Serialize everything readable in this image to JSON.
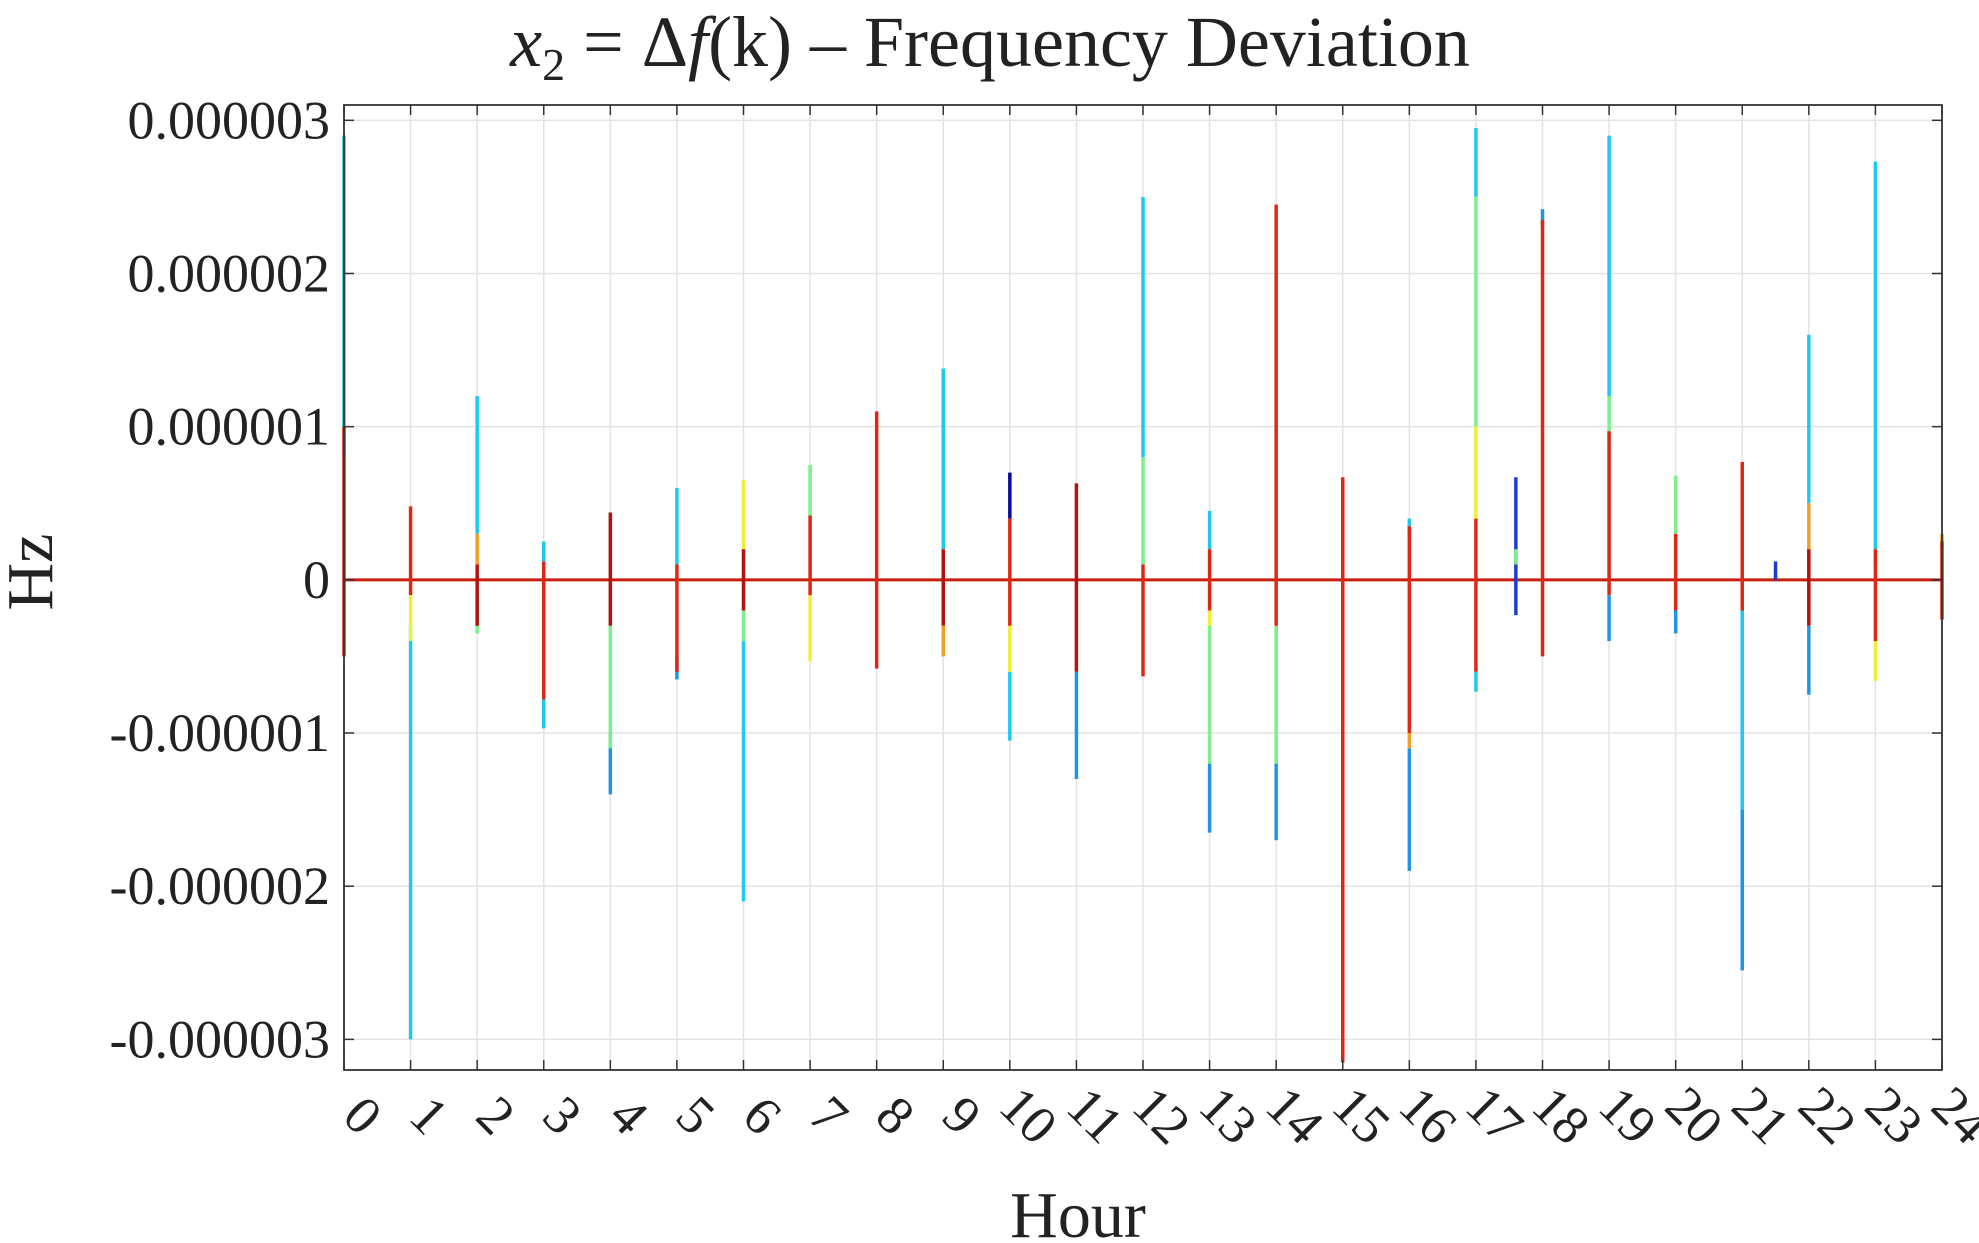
{
  "chart_data": {
    "type": "line",
    "title_var": "x",
    "title_sub": "2",
    "title_eq": " = Δ",
    "title_f": "f",
    "title_args": "(k)",
    "title_rest": " – Frequency Deviation",
    "xlabel": "Hour",
    "ylabel": "Hz",
    "xlim": [
      0,
      24
    ],
    "ylim": [
      -3.2e-06,
      3.1e-06
    ],
    "grid": true,
    "x_ticks": [
      "0",
      "1",
      "2",
      "3",
      "4",
      "5",
      "6",
      "7",
      "8",
      "9",
      "10",
      "11",
      "12",
      "13",
      "14",
      "15",
      "16",
      "17",
      "18",
      "19",
      "20",
      "21",
      "22",
      "23",
      "24"
    ],
    "y_ticks": [
      {
        "value": 3e-06,
        "label": "0.000003"
      },
      {
        "value": 2e-06,
        "label": "0.000002"
      },
      {
        "value": 1e-06,
        "label": "0.000001"
      },
      {
        "value": 0,
        "label": "0"
      },
      {
        "value": -1e-06,
        "label": "-0.000001"
      },
      {
        "value": -2e-06,
        "label": "-0.000002"
      },
      {
        "value": -3e-06,
        "label": "-0.000003"
      }
    ],
    "colors": {
      "cyan": "#1ec8f0",
      "lightblue": "#1e96e6",
      "green": "#7cf08c",
      "yellow": "#f0f032",
      "orange": "#f0a028",
      "red": "#dc2814",
      "darkred": "#b4140f",
      "blue": "#1e3cd2",
      "navy": "#0a0aa0"
    },
    "baseline_color": "#c81e0f",
    "spikes": [
      {
        "x": 0.0,
        "c": "cyan",
        "y0": 1e-06,
        "y1": 2.9e-06
      },
      {
        "x": 0.0,
        "c": "green",
        "y0": 8e-07,
        "y1": 1e-06
      },
      {
        "x": 0.0,
        "c": "red",
        "y0": -5e-07,
        "y1": 1e-06
      },
      {
        "x": 1.0,
        "c": "cyan",
        "y0": -3e-06,
        "y1": -3e-07
      },
      {
        "x": 1.0,
        "c": "yellow",
        "y0": -4e-07,
        "y1": -1e-07
      },
      {
        "x": 1.0,
        "c": "red",
        "y0": -1e-07,
        "y1": 4.8e-07
      },
      {
        "x": 2.0,
        "c": "cyan",
        "y0": 3e-07,
        "y1": 1.2e-06
      },
      {
        "x": 2.0,
        "c": "orange",
        "y0": 1e-07,
        "y1": 3e-07
      },
      {
        "x": 2.0,
        "c": "green",
        "y0": -3.5e-07,
        "y1": -1e-07
      },
      {
        "x": 2.0,
        "c": "darkred",
        "y0": -3e-07,
        "y1": 1e-07
      },
      {
        "x": 3.0,
        "c": "cyan",
        "y0": -9.7e-07,
        "y1": -7e-07
      },
      {
        "x": 3.0,
        "c": "cyan",
        "y0": 1e-07,
        "y1": 2.5e-07
      },
      {
        "x": 3.0,
        "c": "red",
        "y0": -7.8e-07,
        "y1": 1.2e-07
      },
      {
        "x": 4.0,
        "c": "lightblue",
        "y0": -1.4e-06,
        "y1": -1e-06
      },
      {
        "x": 4.0,
        "c": "green",
        "y0": -1.1e-06,
        "y1": -3e-07
      },
      {
        "x": 4.0,
        "c": "darkred",
        "y0": -3e-07,
        "y1": 4.4e-07
      },
      {
        "x": 5.0,
        "c": "cyan",
        "y0": 1e-07,
        "y1": 6e-07
      },
      {
        "x": 5.0,
        "c": "lightblue",
        "y0": -6.5e-07,
        "y1": -5e-07
      },
      {
        "x": 5.0,
        "c": "red",
        "y0": -6e-07,
        "y1": 1e-07
      },
      {
        "x": 6.0,
        "c": "cyan",
        "y0": -2.1e-06,
        "y1": -4e-07
      },
      {
        "x": 6.0,
        "c": "green",
        "y0": -4e-07,
        "y1": -2e-07
      },
      {
        "x": 6.0,
        "c": "yellow",
        "y0": 2e-07,
        "y1": 6.5e-07
      },
      {
        "x": 6.0,
        "c": "darkred",
        "y0": -2e-07,
        "y1": 2e-07
      },
      {
        "x": 7.0,
        "c": "green",
        "y0": 4e-07,
        "y1": 7.5e-07
      },
      {
        "x": 7.0,
        "c": "yellow",
        "y0": -5.3e-07,
        "y1": -1e-07
      },
      {
        "x": 7.0,
        "c": "red",
        "y0": -1e-07,
        "y1": 4.2e-07
      },
      {
        "x": 8.0,
        "c": "red",
        "y0": -5.8e-07,
        "y1": 1.1e-06
      },
      {
        "x": 9.0,
        "c": "cyan",
        "y0": 2e-07,
        "y1": 1.38e-06
      },
      {
        "x": 9.0,
        "c": "orange",
        "y0": -5e-07,
        "y1": -3e-07
      },
      {
        "x": 9.0,
        "c": "darkred",
        "y0": -3e-07,
        "y1": 2e-07
      },
      {
        "x": 10.0,
        "c": "navy",
        "y0": 4e-07,
        "y1": 7e-07
      },
      {
        "x": 10.0,
        "c": "cyan",
        "y0": -1.05e-06,
        "y1": -6e-07
      },
      {
        "x": 10.0,
        "c": "yellow",
        "y0": -6e-07,
        "y1": -3e-07
      },
      {
        "x": 10.0,
        "c": "red",
        "y0": -3e-07,
        "y1": 4e-07
      },
      {
        "x": 11.0,
        "c": "lightblue",
        "y0": -1.3e-06,
        "y1": -6e-07
      },
      {
        "x": 11.0,
        "c": "darkred",
        "y0": -6e-07,
        "y1": 6.3e-07
      },
      {
        "x": 12.0,
        "c": "cyan",
        "y0": 8e-07,
        "y1": 2.5e-06
      },
      {
        "x": 12.0,
        "c": "green",
        "y0": 1e-07,
        "y1": 8e-07
      },
      {
        "x": 12.0,
        "c": "red",
        "y0": -6.3e-07,
        "y1": 1e-07
      },
      {
        "x": 13.0,
        "c": "lightblue",
        "y0": -1.65e-06,
        "y1": -1.2e-06
      },
      {
        "x": 13.0,
        "c": "green",
        "y0": -1.2e-06,
        "y1": -3e-07
      },
      {
        "x": 13.0,
        "c": "yellow",
        "y0": -3e-07,
        "y1": -2e-07
      },
      {
        "x": 13.0,
        "c": "cyan",
        "y0": 2e-07,
        "y1": 4.5e-07
      },
      {
        "x": 13.0,
        "c": "red",
        "y0": -2e-07,
        "y1": 2e-07
      },
      {
        "x": 14.0,
        "c": "lightblue",
        "y0": -1.7e-06,
        "y1": -1.2e-06
      },
      {
        "x": 14.0,
        "c": "green",
        "y0": -1.2e-06,
        "y1": -3e-07
      },
      {
        "x": 14.0,
        "c": "red",
        "y0": -3e-07,
        "y1": 2.45e-06
      },
      {
        "x": 15.0,
        "c": "red",
        "y0": -3.15e-06,
        "y1": 6.7e-07
      },
      {
        "x": 16.0,
        "c": "lightblue",
        "y0": -1.9e-06,
        "y1": -1.1e-06
      },
      {
        "x": 16.0,
        "c": "orange",
        "y0": -1.1e-06,
        "y1": -1e-06
      },
      {
        "x": 16.0,
        "c": "cyan",
        "y0": 3e-07,
        "y1": 4e-07
      },
      {
        "x": 16.0,
        "c": "red",
        "y0": -1e-06,
        "y1": 3.5e-07
      },
      {
        "x": 17.0,
        "c": "cyan",
        "y0": 2.5e-06,
        "y1": 2.95e-06
      },
      {
        "x": 17.0,
        "c": "green",
        "y0": 1e-06,
        "y1": 2.5e-06
      },
      {
        "x": 17.0,
        "c": "yellow",
        "y0": 4e-07,
        "y1": 1e-06
      },
      {
        "x": 17.0,
        "c": "cyan",
        "y0": -7.3e-07,
        "y1": -6e-07
      },
      {
        "x": 17.0,
        "c": "red",
        "y0": -6e-07,
        "y1": 4e-07
      },
      {
        "x": 17.6,
        "c": "blue",
        "y0": -2.3e-07,
        "y1": 6.7e-07
      },
      {
        "x": 17.6,
        "c": "green",
        "y0": 1e-07,
        "y1": 2e-07
      },
      {
        "x": 18.0,
        "c": "lightblue",
        "y0": 2.3e-06,
        "y1": 2.42e-06
      },
      {
        "x": 18.0,
        "c": "red",
        "y0": -5e-07,
        "y1": 2.35e-06
      },
      {
        "x": 19.0,
        "c": "cyan",
        "y0": 1.2e-06,
        "y1": 2.9e-06
      },
      {
        "x": 19.0,
        "c": "green",
        "y0": 9e-07,
        "y1": 1.2e-06
      },
      {
        "x": 19.0,
        "c": "lightblue",
        "y0": -4e-07,
        "y1": -1e-07
      },
      {
        "x": 19.0,
        "c": "red",
        "y0": -1e-07,
        "y1": 9.7e-07
      },
      {
        "x": 20.0,
        "c": "green",
        "y0": 3e-07,
        "y1": 6.8e-07
      },
      {
        "x": 20.0,
        "c": "lightblue",
        "y0": -3.5e-07,
        "y1": -2e-07
      },
      {
        "x": 20.0,
        "c": "red",
        "y0": -2e-07,
        "y1": 3e-07
      },
      {
        "x": 21.0,
        "c": "lightblue",
        "y0": -2.55e-06,
        "y1": -1.5e-06
      },
      {
        "x": 21.0,
        "c": "cyan",
        "y0": -1.5e-06,
        "y1": -2e-07
      },
      {
        "x": 21.0,
        "c": "red",
        "y0": -2e-07,
        "y1": 7.7e-07
      },
      {
        "x": 21.5,
        "c": "blue",
        "y0": 0.0,
        "y1": 1.2e-07
      },
      {
        "x": 22.0,
        "c": "cyan",
        "y0": 5e-07,
        "y1": 1.6e-06
      },
      {
        "x": 22.0,
        "c": "orange",
        "y0": 1e-07,
        "y1": 5e-07
      },
      {
        "x": 22.0,
        "c": "lightblue",
        "y0": -7.5e-07,
        "y1": -3e-07
      },
      {
        "x": 22.0,
        "c": "darkred",
        "y0": -3e-07,
        "y1": 2e-07
      },
      {
        "x": 23.0,
        "c": "cyan",
        "y0": 2e-07,
        "y1": 2.73e-06
      },
      {
        "x": 23.0,
        "c": "orange",
        "y0": 1e-07,
        "y1": 2e-07
      },
      {
        "x": 23.0,
        "c": "yellow",
        "y0": -6.6e-07,
        "y1": -4e-07
      },
      {
        "x": 23.0,
        "c": "red",
        "y0": -4e-07,
        "y1": 2e-07
      },
      {
        "x": 24.0,
        "c": "orange",
        "y0": 2e-07,
        "y1": 3e-07
      },
      {
        "x": 24.0,
        "c": "red",
        "y0": -2.6e-07,
        "y1": 2.5e-07
      }
    ]
  }
}
